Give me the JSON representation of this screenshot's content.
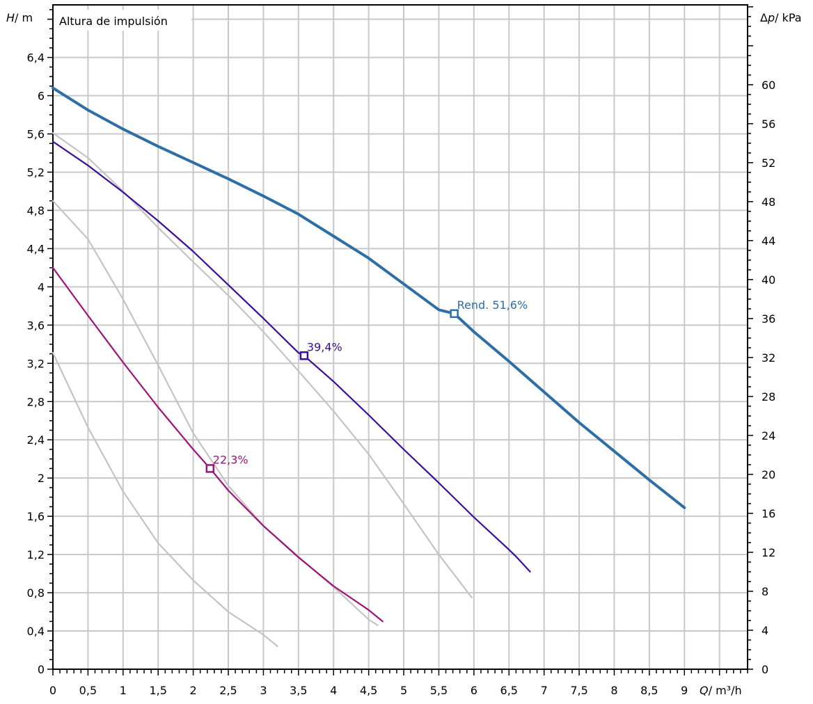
{
  "chart_data": {
    "type": "line",
    "title": "Altura de impulsión",
    "left_axis": {
      "label_var": "H",
      "label_unit": "/ m",
      "range": [
        0,
        6.95
      ],
      "ticks": [
        "0",
        "0,4",
        "0,8",
        "1,2",
        "1,6",
        "2",
        "2,4",
        "2,8",
        "3,2",
        "3,6",
        "4",
        "4,4",
        "4,8",
        "5,2",
        "5,6",
        "6",
        "6,4"
      ],
      "tick_values": [
        0,
        0.4,
        0.8,
        1.2,
        1.6,
        2,
        2.4,
        2.8,
        3.2,
        3.6,
        4,
        4.4,
        4.8,
        5.2,
        5.6,
        6,
        6.4
      ]
    },
    "right_axis": {
      "label_prefix": "Δ",
      "label_var": "p",
      "label_unit": "/ kPa",
      "range": [
        0,
        68.2
      ],
      "ticks": [
        "0",
        "4",
        "8",
        "12",
        "16",
        "20",
        "24",
        "28",
        "32",
        "36",
        "40",
        "44",
        "48",
        "52",
        "56",
        "60"
      ],
      "tick_values": [
        0,
        4,
        8,
        12,
        16,
        20,
        24,
        28,
        32,
        36,
        40,
        44,
        48,
        52,
        56,
        60
      ]
    },
    "x_axis": {
      "label_var": "Q",
      "label_unit": "/ m³/h",
      "range": [
        0,
        9.9
      ],
      "ticks": [
        "0",
        "0,5",
        "1",
        "1,5",
        "2",
        "2,5",
        "3",
        "3,5",
        "4",
        "4,5",
        "5",
        "5,5",
        "6",
        "6,5",
        "7",
        "7,5",
        "8",
        "8,5",
        "9"
      ],
      "tick_values": [
        0,
        0.5,
        1,
        1.5,
        2,
        2.5,
        3,
        3.5,
        4,
        4.5,
        5,
        5.5,
        6,
        6.5,
        7,
        7.5,
        8,
        8.5,
        9
      ]
    },
    "grid": true,
    "colors": {
      "blue": "#2c6ea5",
      "purple": "#3d0a9e",
      "magenta": "#a0107a",
      "gray": "#c3c3c3",
      "grid": "#c8c8c8",
      "axis": "#000000"
    },
    "series": [
      {
        "key": "pump-curve-max",
        "color": "#2c6ea5",
        "width": 4,
        "x": [
          0,
          0.5,
          1,
          1.5,
          2,
          2.5,
          3,
          3.5,
          4,
          4.5,
          5,
          5.5,
          5.72,
          6,
          6.5,
          7,
          7.5,
          8,
          8.5,
          9
        ],
        "y": [
          6.08,
          5.85,
          5.65,
          5.47,
          5.3,
          5.13,
          4.95,
          4.76,
          4.53,
          4.3,
          4.03,
          3.76,
          3.72,
          3.53,
          3.22,
          2.9,
          2.58,
          2.28,
          1.98,
          1.69
        ]
      },
      {
        "key": "pump-curve-mid",
        "color": "#3d0a9e",
        "width": 2.2,
        "x": [
          0,
          0.5,
          1,
          1.5,
          2,
          2.5,
          3,
          3.5,
          3.58,
          4,
          4.5,
          5,
          5.5,
          6,
          6.5,
          6.6,
          6.8
        ],
        "y": [
          5.52,
          5.27,
          4.99,
          4.69,
          4.37,
          4.02,
          3.67,
          3.31,
          3.28,
          3.01,
          2.66,
          2.3,
          1.95,
          1.59,
          1.25,
          1.18,
          1.02
        ]
      },
      {
        "key": "pump-curve-low",
        "color": "#a0107a",
        "width": 2.2,
        "x": [
          0,
          0.5,
          1,
          1.5,
          2,
          2.24,
          2.5,
          3,
          3.5,
          4,
          4.5,
          4.7
        ],
        "y": [
          4.2,
          3.7,
          3.21,
          2.74,
          2.3,
          2.1,
          1.87,
          1.5,
          1.17,
          0.87,
          0.62,
          0.5
        ]
      },
      {
        "key": "limit-curve-1",
        "color": "#c3c3c3",
        "width": 2.2,
        "x": [
          0,
          0.5,
          1,
          1.5,
          2,
          2.5,
          3,
          3.5,
          4,
          4.5,
          5,
          5.5,
          5.97
        ],
        "y": [
          5.61,
          5.35,
          5.0,
          4.62,
          4.26,
          3.91,
          3.53,
          3.12,
          2.7,
          2.25,
          1.73,
          1.2,
          0.75
        ]
      },
      {
        "key": "limit-curve-2",
        "color": "#c3c3c3",
        "width": 2.2,
        "x": [
          0,
          0.5,
          1,
          1.5,
          2,
          2.5,
          3,
          3.5,
          4,
          4.5,
          4.63
        ],
        "y": [
          4.9,
          4.5,
          3.87,
          3.18,
          2.47,
          1.92,
          1.5,
          1.18,
          0.86,
          0.52,
          0.46
        ]
      },
      {
        "key": "limit-curve-3",
        "color": "#c3c3c3",
        "width": 2.2,
        "x": [
          0,
          0.5,
          1,
          1.5,
          2,
          2.5,
          3,
          3.2
        ],
        "y": [
          3.31,
          2.53,
          1.86,
          1.32,
          0.93,
          0.6,
          0.36,
          0.24
        ]
      }
    ],
    "markers": [
      {
        "key": "marker-rend",
        "series": "pump-curve-max",
        "x": 5.72,
        "y": 3.72,
        "label": "Rend. 51,6%",
        "color": "#2c6ea5"
      },
      {
        "key": "marker-39",
        "series": "pump-curve-mid",
        "x": 3.58,
        "y": 3.28,
        "label": "39,4%",
        "color": "#3d0a9e"
      },
      {
        "key": "marker-22",
        "series": "pump-curve-low",
        "x": 2.24,
        "y": 2.1,
        "label": "22,3%",
        "color": "#a0107a"
      }
    ]
  }
}
